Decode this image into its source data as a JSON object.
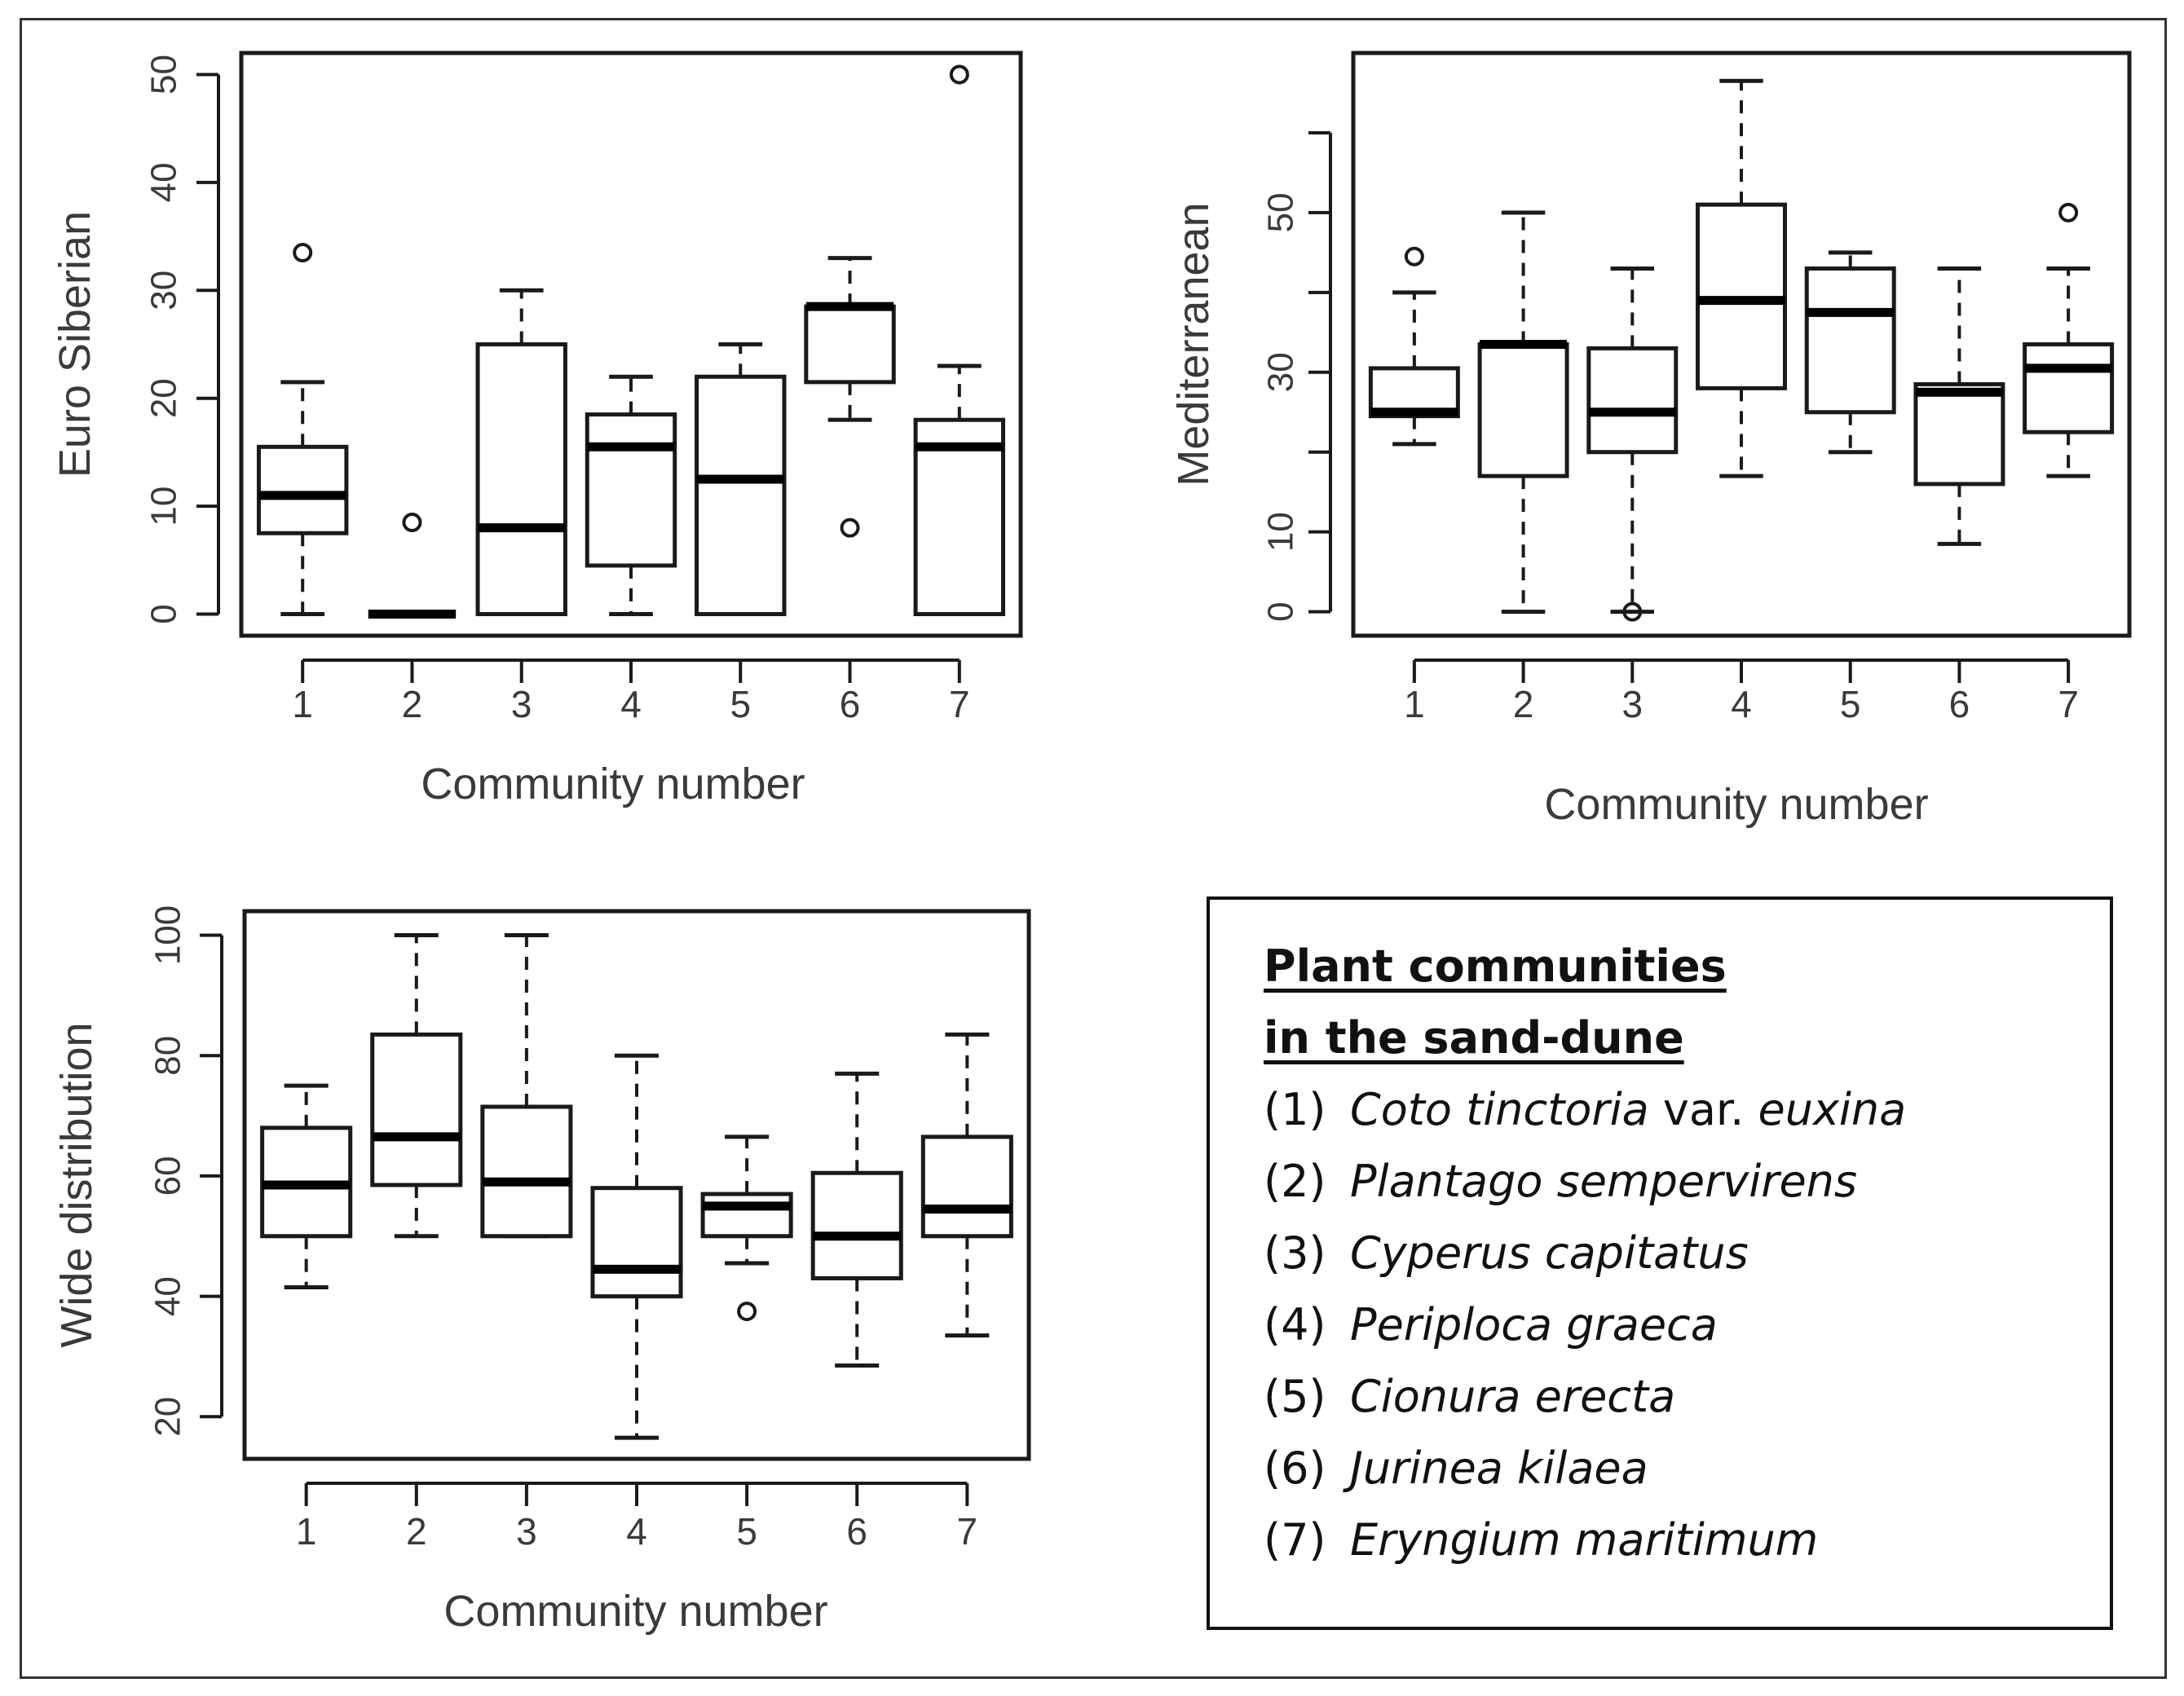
{
  "chart_data": [
    {
      "type": "boxplot",
      "ylabel": "Euro Siberian",
      "xlabel": "Community number",
      "ylim": [
        -2,
        52
      ],
      "yticks": [
        0,
        10,
        20,
        30,
        40,
        50
      ],
      "categories": [
        "1",
        "2",
        "3",
        "4",
        "5",
        "6",
        "7"
      ],
      "boxes": [
        {
          "min": 0,
          "q1": 7.5,
          "median": 11,
          "q3": 15.5,
          "max": 21.5,
          "outliers": [
            33.5
          ]
        },
        {
          "min": 0,
          "q1": 0,
          "median": 0,
          "q3": 0,
          "max": 0,
          "outliers": [
            8.5
          ]
        },
        {
          "min": 0,
          "q1": 0,
          "median": 8,
          "q3": 25,
          "max": 30,
          "outliers": []
        },
        {
          "min": 0,
          "q1": 4.5,
          "median": 15.5,
          "q3": 18.5,
          "max": 22,
          "outliers": []
        },
        {
          "min": 0,
          "q1": 0,
          "median": 12.5,
          "q3": 22,
          "max": 25,
          "outliers": []
        },
        {
          "min": 18,
          "q1": 21.5,
          "median": 28.5,
          "q3": 28.5,
          "max": 33,
          "outliers": [
            8
          ]
        },
        {
          "min": 0,
          "q1": 0,
          "median": 15.5,
          "q3": 18,
          "max": 23,
          "outliers": [
            50
          ]
        }
      ]
    },
    {
      "type": "boxplot",
      "ylabel": "Mediterranean",
      "xlabel": "Community number",
      "ylim": [
        -3,
        70
      ],
      "yticks": [
        0,
        10,
        20,
        30,
        40,
        50,
        60
      ],
      "ytick_labels": [
        "0",
        "10",
        "",
        "30",
        "",
        "50",
        ""
      ],
      "categories": [
        "1",
        "2",
        "3",
        "4",
        "5",
        "6",
        "7"
      ],
      "boxes": [
        {
          "min": 21,
          "q1": 24.5,
          "median": 25,
          "q3": 30.5,
          "max": 40,
          "outliers": [
            44.5
          ]
        },
        {
          "min": 0,
          "q1": 17,
          "median": 33.5,
          "q3": 33.5,
          "max": 50,
          "outliers": []
        },
        {
          "min": 0,
          "q1": 20,
          "median": 25,
          "q3": 33,
          "max": 43,
          "outliers": [
            0
          ]
        },
        {
          "min": 17,
          "q1": 28,
          "median": 39,
          "q3": 51,
          "max": 66.5,
          "outliers": []
        },
        {
          "min": 20,
          "q1": 25,
          "median": 37.5,
          "q3": 43,
          "max": 45,
          "outliers": []
        },
        {
          "min": 8.5,
          "q1": 16,
          "median": 27.5,
          "q3": 28.5,
          "max": 43,
          "outliers": []
        },
        {
          "min": 17,
          "q1": 22.5,
          "median": 30.5,
          "q3": 33.5,
          "max": 43,
          "outliers": [
            50
          ]
        }
      ]
    },
    {
      "type": "boxplot",
      "ylabel": "Wide distribution",
      "xlabel": "Community number",
      "ylim": [
        13,
        104
      ],
      "yticks": [
        20,
        40,
        60,
        80,
        100
      ],
      "categories": [
        "1",
        "2",
        "3",
        "4",
        "5",
        "6",
        "7"
      ],
      "boxes": [
        {
          "min": 41.5,
          "q1": 50,
          "median": 58.5,
          "q3": 68,
          "max": 75,
          "outliers": []
        },
        {
          "min": 50,
          "q1": 58.5,
          "median": 66.5,
          "q3": 83.5,
          "max": 100,
          "outliers": []
        },
        {
          "min": 50,
          "q1": 50,
          "median": 59,
          "q3": 71.5,
          "max": 100,
          "outliers": []
        },
        {
          "min": 16.5,
          "q1": 40,
          "median": 44.5,
          "q3": 58,
          "max": 80,
          "outliers": []
        },
        {
          "min": 45.5,
          "q1": 50,
          "median": 55,
          "q3": 57,
          "max": 66.5,
          "outliers": [
            37.5
          ]
        },
        {
          "min": 28.5,
          "q1": 43,
          "median": 50,
          "q3": 60.5,
          "max": 77,
          "outliers": []
        },
        {
          "min": 33.5,
          "q1": 50,
          "median": 54.5,
          "q3": 66.5,
          "max": 83.5,
          "outliers": []
        }
      ]
    }
  ],
  "legend": {
    "title_line1": "Plant communities",
    "title_line2": "in the sand-dune",
    "items": [
      {
        "num": "(1)",
        "name": "Coto tinctoria",
        "suffix": " var. ",
        "extra": "euxina"
      },
      {
        "num": "(2)",
        "name": "Plantago sempervirens",
        "suffix": "",
        "extra": ""
      },
      {
        "num": "(3)",
        "name": "Cyperus capitatus",
        "suffix": "",
        "extra": ""
      },
      {
        "num": "(4)",
        "name": "Periploca graeca",
        "suffix": "",
        "extra": ""
      },
      {
        "num": "(5)",
        "name": "Cionura erecta",
        "suffix": "",
        "extra": ""
      },
      {
        "num": "(6)",
        "name": "Jurinea kilaea",
        "suffix": "",
        "extra": ""
      },
      {
        "num": "(7)",
        "name": "Eryngium maritimum",
        "suffix": "",
        "extra": ""
      }
    ]
  }
}
